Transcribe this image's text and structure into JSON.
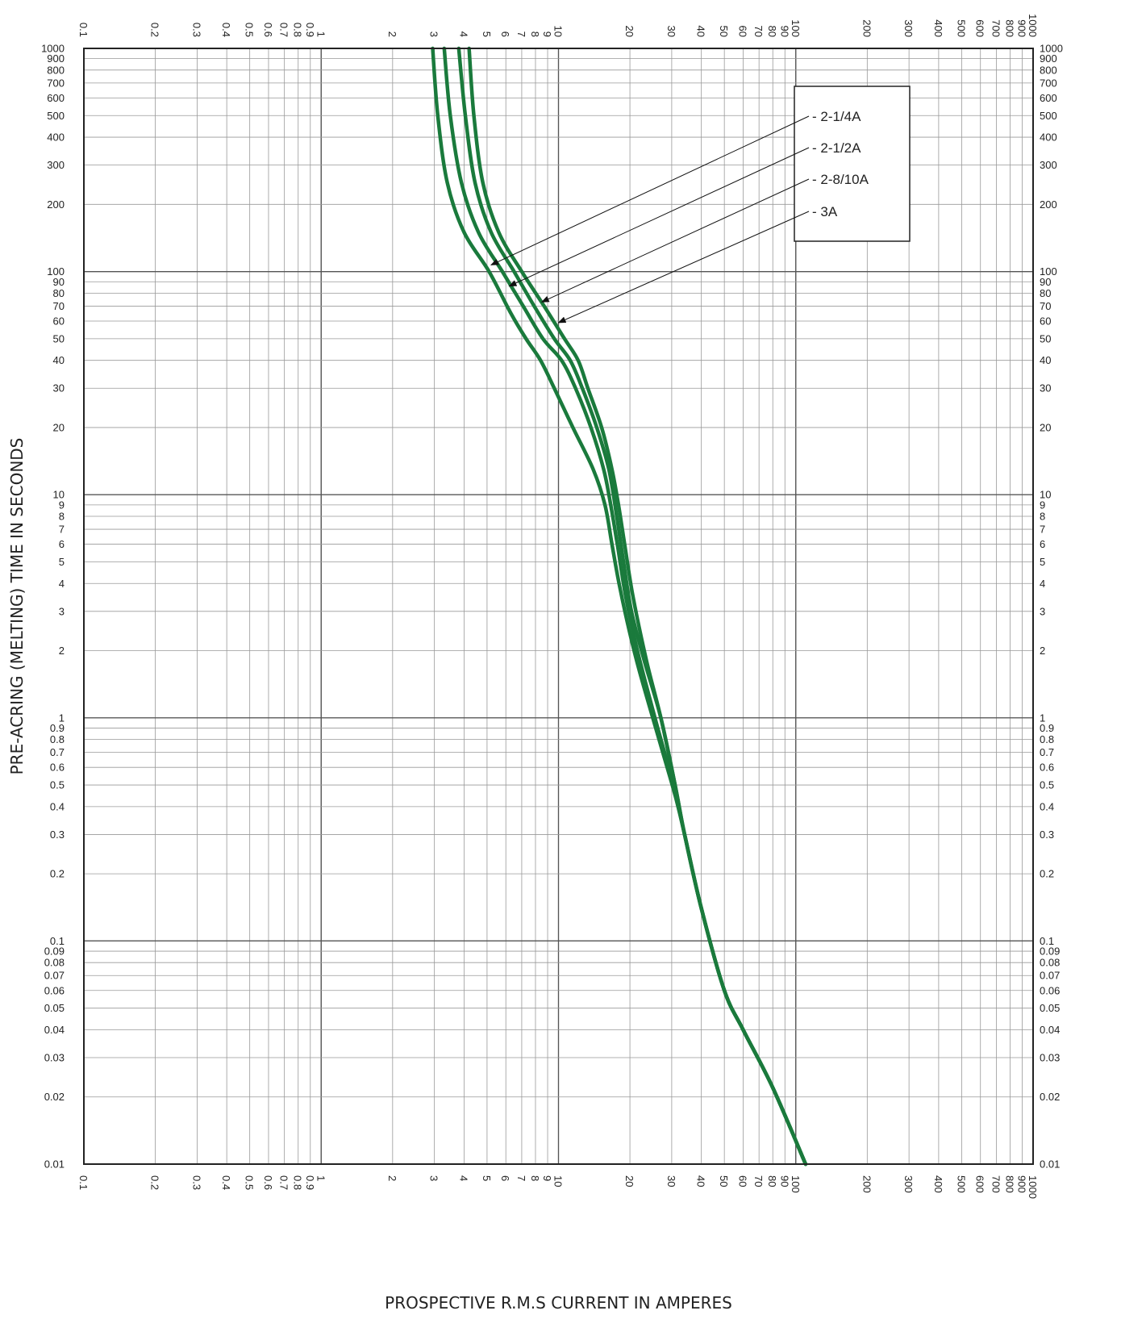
{
  "chart_data": {
    "type": "line",
    "xscale": "log",
    "yscale": "log",
    "xlabel": "PROSPECTIVE R.M.S CURRENT IN AMPERES",
    "ylabel": "PRE-ACRING (MELTING) TIME IN SECONDS",
    "xlim": [
      0.1,
      1000
    ],
    "ylim": [
      0.01,
      1000
    ],
    "grid": true,
    "legend_position": "top-right",
    "line_color": "#1a7a3c",
    "x_tick_labels": [
      "0.1",
      "0.2",
      "0.3",
      "0.4",
      "0.5",
      "0.6",
      "0.7",
      "0.8",
      "0.9",
      "1",
      "2",
      "3",
      "4",
      "5",
      "6",
      "7",
      "8",
      "9",
      "10",
      "20",
      "30",
      "40",
      "50",
      "60",
      "70",
      "80",
      "90",
      "100",
      "200",
      "300",
      "400",
      "500",
      "600",
      "700",
      "800",
      "900",
      "1000"
    ],
    "y_tick_labels": [
      "0.01",
      "0.02",
      "0.03",
      "0.04",
      "0.05",
      "0.06",
      "0.07",
      "0.08",
      "0.09",
      "0.1",
      "0.2",
      "0.3",
      "0.4",
      "0.5",
      "0.6",
      "0.7",
      "0.8",
      "0.9",
      "1",
      "2",
      "3",
      "4",
      "5",
      "6",
      "7",
      "8",
      "9",
      "10",
      "20",
      "30",
      "40",
      "50",
      "60",
      "70",
      "80",
      "90",
      "100",
      "200",
      "300",
      "400",
      "500",
      "600",
      "700",
      "800",
      "900",
      "1000"
    ],
    "series": [
      {
        "name": "2-1/4A",
        "points": [
          [
            2.95,
            1000
          ],
          [
            3.1,
            500
          ],
          [
            3.4,
            250
          ],
          [
            4.0,
            150
          ],
          [
            5.1,
            100
          ],
          [
            6.3,
            65
          ],
          [
            7.3,
            50
          ],
          [
            8.4,
            40
          ],
          [
            9.6,
            30
          ],
          [
            11.5,
            20
          ],
          [
            14.0,
            13
          ],
          [
            15.7,
            9
          ],
          [
            16.8,
            6
          ],
          [
            18.0,
            4
          ],
          [
            19.8,
            2.5
          ],
          [
            22.0,
            1.6
          ],
          [
            27.0,
            0.75
          ],
          [
            31.0,
            0.45
          ],
          [
            34.0,
            0.3
          ],
          [
            40.0,
            0.14
          ],
          [
            50.0,
            0.06
          ],
          [
            60.0,
            0.04
          ],
          [
            80.0,
            0.022
          ],
          [
            110.0,
            0.01
          ]
        ],
        "label_point": [
          5.2,
          107
        ]
      },
      {
        "name": "2-1/2A",
        "points": [
          [
            3.3,
            1000
          ],
          [
            3.5,
            500
          ],
          [
            3.9,
            250
          ],
          [
            4.6,
            150
          ],
          [
            5.8,
            100
          ],
          [
            7.1,
            70
          ],
          [
            8.6,
            50
          ],
          [
            10.3,
            40
          ],
          [
            11.8,
            30
          ],
          [
            13.7,
            20
          ],
          [
            15.5,
            13
          ],
          [
            16.6,
            9
          ],
          [
            17.7,
            6
          ],
          [
            19.2,
            3.5
          ],
          [
            21.5,
            2.0
          ],
          [
            25.5,
            1.0
          ],
          [
            30.5,
            0.5
          ],
          [
            34.0,
            0.3
          ],
          [
            40.0,
            0.14
          ],
          [
            50.0,
            0.06
          ],
          [
            60.0,
            0.04
          ],
          [
            80.0,
            0.022
          ],
          [
            110.0,
            0.01
          ]
        ],
        "label_point": [
          6.2,
          86
        ]
      },
      {
        "name": "2-8/10A",
        "points": [
          [
            3.8,
            1000
          ],
          [
            4.05,
            500
          ],
          [
            4.45,
            250
          ],
          [
            5.2,
            150
          ],
          [
            6.5,
            100
          ],
          [
            7.9,
            70
          ],
          [
            9.6,
            50
          ],
          [
            11.2,
            40
          ],
          [
            12.6,
            30
          ],
          [
            14.5,
            20
          ],
          [
            16.3,
            13
          ],
          [
            17.6,
            8
          ],
          [
            18.8,
            5
          ],
          [
            20.3,
            3.0
          ],
          [
            23.0,
            1.8
          ],
          [
            27.0,
            1.0
          ],
          [
            31.0,
            0.5
          ],
          [
            34.0,
            0.3
          ],
          [
            40.0,
            0.14
          ],
          [
            50.0,
            0.06
          ],
          [
            60.0,
            0.04
          ],
          [
            80.0,
            0.022
          ],
          [
            110.0,
            0.01
          ]
        ],
        "label_point": [
          8.5,
          73
        ]
      },
      {
        "name": "3A",
        "points": [
          [
            4.2,
            1000
          ],
          [
            4.4,
            500
          ],
          [
            4.8,
            250
          ],
          [
            5.6,
            150
          ],
          [
            7.0,
            100
          ],
          [
            8.7,
            70
          ],
          [
            10.6,
            50
          ],
          [
            12.1,
            40
          ],
          [
            13.3,
            30
          ],
          [
            15.2,
            20
          ],
          [
            16.8,
            13
          ],
          [
            17.9,
            9
          ],
          [
            19.0,
            6
          ],
          [
            20.6,
            3.5
          ],
          [
            23.5,
            1.8
          ],
          [
            27.0,
            1.0
          ],
          [
            31.0,
            0.5
          ],
          [
            34.0,
            0.3
          ],
          [
            40.0,
            0.14
          ],
          [
            50.0,
            0.06
          ],
          [
            60.0,
            0.04
          ],
          [
            80.0,
            0.022
          ],
          [
            110.0,
            0.01
          ]
        ],
        "label_point": [
          10.0,
          59
        ]
      }
    ]
  }
}
